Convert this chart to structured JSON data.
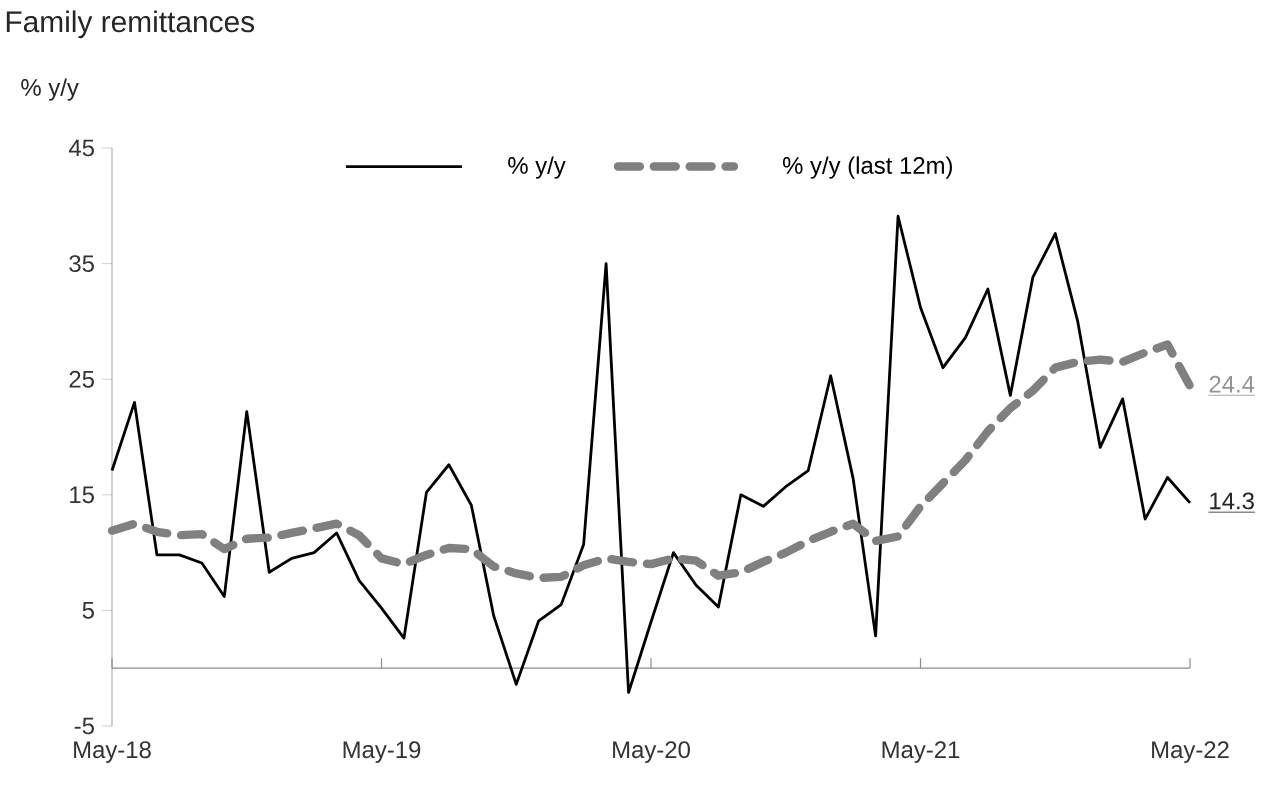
{
  "chart_data": {
    "type": "line",
    "title": "Family remittances",
    "x": [
      "2018-05",
      "2018-06",
      "2018-07",
      "2018-08",
      "2018-09",
      "2018-10",
      "2018-11",
      "2018-12",
      "2019-01",
      "2019-02",
      "2019-03",
      "2019-04",
      "2019-05",
      "2019-06",
      "2019-07",
      "2019-08",
      "2019-09",
      "2019-10",
      "2019-11",
      "2019-12",
      "2020-01",
      "2020-02",
      "2020-03",
      "2020-04",
      "2020-05",
      "2020-06",
      "2020-07",
      "2020-08",
      "2020-09",
      "2020-10",
      "2020-11",
      "2020-12",
      "2021-01",
      "2021-02",
      "2021-03",
      "2021-04",
      "2021-05",
      "2021-06",
      "2021-07",
      "2021-08",
      "2021-09",
      "2021-10",
      "2021-11",
      "2021-12",
      "2022-01",
      "2022-02",
      "2022-03",
      "2022-04",
      "2022-05"
    ],
    "series": [
      {
        "name": "% y/y",
        "color": "#000000",
        "line_style": "solid",
        "values": [
          17.1,
          23,
          9.8,
          9.8,
          9.1,
          6.2,
          22.2,
          8.3,
          9.5,
          10,
          11.7,
          7.6,
          5.2,
          2.6,
          15.2,
          17.6,
          14.1,
          4.5,
          -1.4,
          4.1,
          5.5,
          10.7,
          35,
          -2.1,
          4,
          10,
          7.2,
          5.3,
          15,
          14,
          15.7,
          17.1,
          25.3,
          16.4,
          2.8,
          39.1,
          31.2,
          26,
          28.6,
          32.8,
          23.6,
          33.8,
          37.6,
          30,
          19.1,
          23.3,
          12.9,
          16.5,
          14.3
        ]
      },
      {
        "name": "% y/y (last 12m)",
        "color": "#808080",
        "line_style": "dashed",
        "values": [
          11.9,
          12.5,
          11.8,
          11.5,
          11.6,
          10.3,
          11.2,
          11.3,
          11.7,
          12.1,
          12.5,
          11.5,
          9.5,
          9,
          9.8,
          10.4,
          10.3,
          8.8,
          8.2,
          7.8,
          7.9,
          8.9,
          9.5,
          9.2,
          9,
          9.5,
          9.3,
          8,
          8.3,
          9.2,
          10,
          11,
          11.8,
          12.5,
          11,
          11.4,
          14,
          16,
          18,
          20.5,
          22.5,
          24,
          26,
          26.5,
          26.7,
          26.5,
          27.3,
          28,
          24.4
        ]
      }
    ],
    "ylim": [
      -5,
      45
    ],
    "yticks": [
      -5,
      5,
      15,
      25,
      35,
      45
    ],
    "xlim": [
      "2018-05",
      "2022-05"
    ],
    "xticks": [
      {
        "value": "2018-05",
        "label": "May-18"
      },
      {
        "value": "2019-05",
        "label": "May-19"
      },
      {
        "value": "2020-05",
        "label": "May-20"
      },
      {
        "value": "2021-05",
        "label": "May-21"
      },
      {
        "value": "2022-05",
        "label": "May-22"
      }
    ],
    "annotations": [
      "% y/y",
      {
        "text": "14.3",
        "x": "2022-05",
        "y": 14.3
      },
      {
        "text": "24.4",
        "x": "2022-05",
        "y": 24.4
      }
    ],
    "legend": "top",
    "grid": false,
    "marker": "none"
  }
}
